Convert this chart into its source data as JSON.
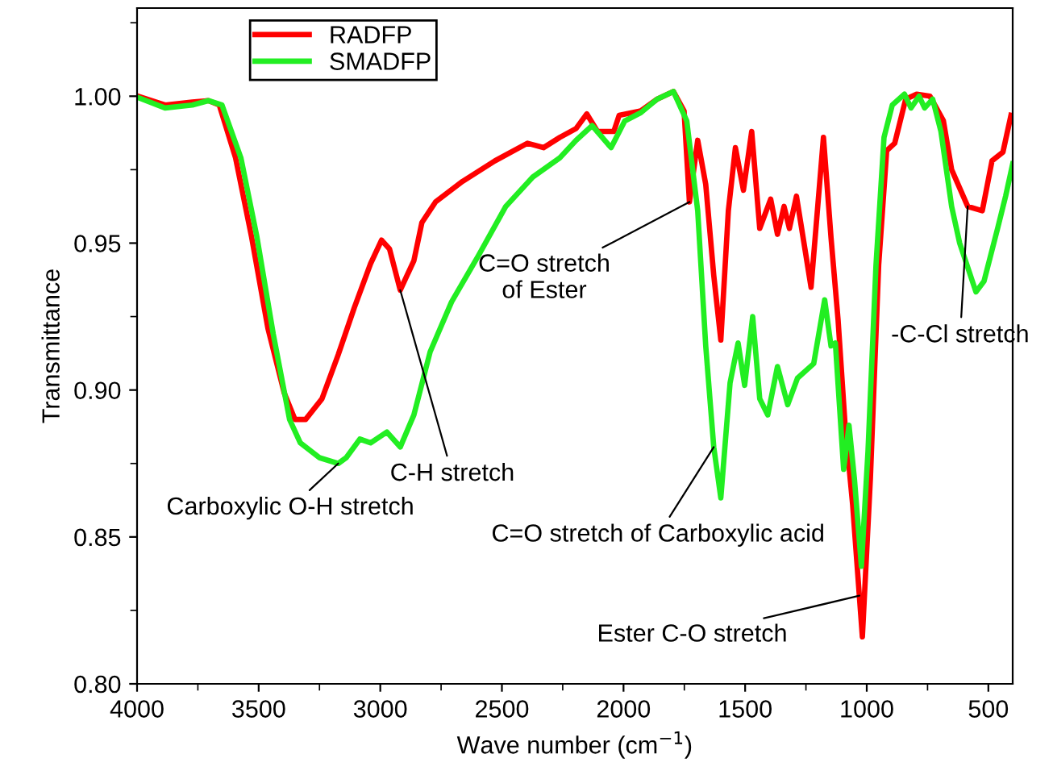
{
  "chart_data": {
    "type": "line",
    "xlabel": "Wave number (cm$^{−1}$)",
    "ylabel": "Transmittance",
    "xlim": [
      4000,
      400
    ],
    "xticks": [
      4000,
      3500,
      3000,
      2500,
      2000,
      1500,
      1000,
      500
    ],
    "ylim": [
      0.8,
      1.03
    ],
    "yticks": [
      {
        "value": 0.8,
        "label": "0.80"
      },
      0.85,
      {
        "value": 0.9,
        "label": "0.90"
      },
      0.95,
      {
        "value": 1.0,
        "label": "1.00"
      }
    ],
    "grid": false,
    "legend": "top left",
    "marker": "none",
    "line_style": "solid",
    "series": [
      {
        "name": "RADFP",
        "color": "#ff0000",
        "x": [
          3995,
          3885,
          3773,
          3707,
          3662,
          3595,
          3529,
          3462,
          3395,
          3351,
          3307,
          3240,
          3173,
          3107,
          3040,
          2995,
          2962,
          2918,
          2862,
          2829,
          2773,
          2662,
          2529,
          2395,
          2329,
          2262,
          2195,
          2151,
          2107,
          2040,
          2018,
          1929,
          1862,
          1795,
          1751,
          1729,
          1695,
          1662,
          1629,
          1600,
          1569,
          1540,
          1507,
          1473,
          1440,
          1395,
          1367,
          1340,
          1318,
          1289,
          1229,
          1178,
          1147,
          1118,
          1089,
          1058,
          1018,
          985,
          951,
          918,
          885,
          840,
          795,
          740,
          685,
          651,
          585,
          525,
          485,
          440,
          407
        ],
        "values": [
          1.0,
          0.997,
          0.998,
          0.9985,
          0.997,
          0.979,
          0.952,
          0.921,
          0.899,
          0.89,
          0.89,
          0.897,
          0.912,
          0.928,
          0.943,
          0.951,
          0.948,
          0.934,
          0.944,
          0.957,
          0.964,
          0.971,
          0.978,
          0.984,
          0.9825,
          0.986,
          0.989,
          0.994,
          0.988,
          0.988,
          0.9935,
          0.995,
          0.999,
          1.0016,
          0.995,
          0.964,
          0.985,
          0.97,
          0.939,
          0.917,
          0.961,
          0.9825,
          0.968,
          0.988,
          0.955,
          0.965,
          0.953,
          0.9625,
          0.955,
          0.966,
          0.935,
          0.986,
          0.952,
          0.924,
          0.888,
          0.861,
          0.816,
          0.87,
          0.9425,
          0.9815,
          0.984,
          0.999,
          1.0007,
          1.0,
          0.9917,
          0.975,
          0.9625,
          0.961,
          0.978,
          0.981,
          0.9935
        ]
      },
      {
        "name": "SMADFP",
        "color": "#22ee22",
        "x": [
          3995,
          3885,
          3773,
          3707,
          3651,
          3573,
          3507,
          3440,
          3373,
          3329,
          3251,
          3173,
          3140,
          3084,
          3040,
          2973,
          2918,
          2862,
          2795,
          2707,
          2595,
          2484,
          2373,
          2262,
          2195,
          2129,
          2062,
          2051,
          1995,
          1929,
          1862,
          1795,
          1740,
          1695,
          1662,
          1629,
          1600,
          1562,
          1529,
          1502,
          1469,
          1440,
          1407,
          1367,
          1325,
          1285,
          1218,
          1173,
          1147,
          1129,
          1095,
          1073,
          1051,
          1022,
          995,
          962,
          929,
          895,
          845,
          818,
          785,
          762,
          729,
          695,
          651,
          618,
          551,
          518,
          462,
          429,
          400
        ],
        "values": [
          0.9995,
          0.996,
          0.997,
          0.9985,
          0.997,
          0.979,
          0.952,
          0.919,
          0.89,
          0.882,
          0.877,
          0.875,
          0.877,
          0.8833,
          0.882,
          0.8857,
          0.8806,
          0.8915,
          0.913,
          0.93,
          0.946,
          0.9625,
          0.9725,
          0.979,
          0.985,
          0.99,
          0.9835,
          0.9825,
          0.9916,
          0.9944,
          0.999,
          1.0016,
          0.9916,
          0.961,
          0.915,
          0.8806,
          0.8633,
          0.9024,
          0.916,
          0.9016,
          0.925,
          0.897,
          0.8915,
          0.908,
          0.895,
          0.904,
          0.909,
          0.9307,
          0.915,
          0.916,
          0.873,
          0.888,
          0.87,
          0.84,
          0.879,
          0.9425,
          0.986,
          0.997,
          1.0007,
          0.996,
          1.0,
          0.996,
          0.999,
          0.988,
          0.9625,
          0.95,
          0.9334,
          0.937,
          0.955,
          0.966,
          0.977
        ]
      }
    ],
    "annotations": [
      {
        "text": "Carboxylic O-H stretch",
        "x": 3173,
        "y": 0.875
      },
      {
        "text": "C-H stretch",
        "x": 2918,
        "y": 0.934
      },
      {
        "text": "C=O stretch\nof Ester",
        "x": 1729,
        "y": 0.964
      },
      {
        "text": "C=O stretch of Carboxylic acid",
        "x": 1629,
        "y": 0.8806
      },
      {
        "text": "Ester C-O stretch",
        "x": 1030,
        "y": 0.83
      },
      {
        "text": "-C-Cl stretch",
        "x": 585,
        "y": 0.9625
      }
    ]
  }
}
